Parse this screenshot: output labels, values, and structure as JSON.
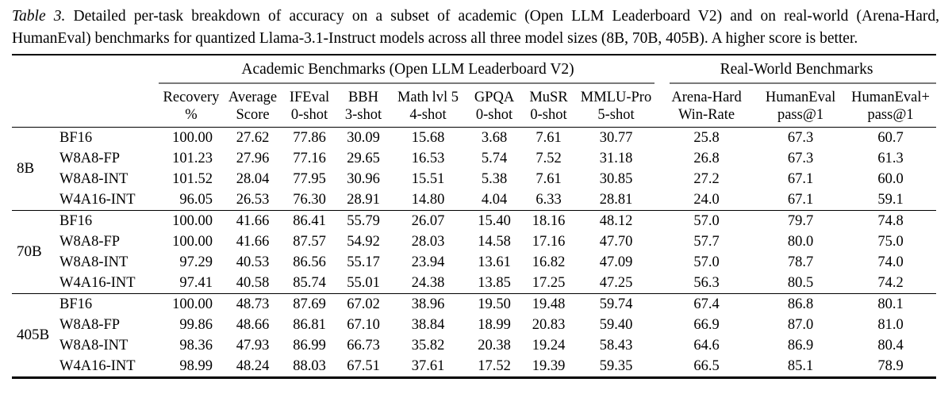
{
  "caption": {
    "label": "Table 3.",
    "text": "Detailed per-task breakdown of accuracy on a subset of academic (Open LLM Leaderboard V2) and on real-world (Arena-Hard, HumanEval) benchmarks for quantized Llama-3.1-Instruct models across all three model sizes (8B, 70B, 405B). A higher score is better."
  },
  "table": {
    "group_headers": [
      {
        "label": "Academic Benchmarks (Open LLM Leaderboard V2)"
      },
      {
        "label": "Real-World Benchmarks"
      }
    ],
    "columns": [
      {
        "line1": "Recovery",
        "line2": "%"
      },
      {
        "line1": "Average",
        "line2": "Score"
      },
      {
        "line1": "IFEval",
        "line2": "0-shot"
      },
      {
        "line1": "BBH",
        "line2": "3-shot"
      },
      {
        "line1": "Math lvl 5",
        "line2": "4-shot"
      },
      {
        "line1": "GPQA",
        "line2": "0-shot"
      },
      {
        "line1": "MuSR",
        "line2": "0-shot"
      },
      {
        "line1": "MMLU-Pro",
        "line2": "5-shot"
      },
      {
        "line1": "Arena-Hard",
        "line2": "Win-Rate"
      },
      {
        "line1": "HumanEval",
        "line2": "pass@1"
      },
      {
        "line1": "HumanEval+",
        "line2": "pass@1"
      }
    ],
    "groups": [
      {
        "size": "8B",
        "rows": [
          {
            "model": "BF16",
            "values": [
              "100.00",
              "27.62",
              "77.86",
              "30.09",
              "15.68",
              "3.68",
              "7.61",
              "30.77",
              "25.8",
              "67.3",
              "60.7"
            ]
          },
          {
            "model": "W8A8-FP",
            "values": [
              "101.23",
              "27.96",
              "77.16",
              "29.65",
              "16.53",
              "5.74",
              "7.52",
              "31.18",
              "26.8",
              "67.3",
              "61.3"
            ]
          },
          {
            "model": "W8A8-INT",
            "values": [
              "101.52",
              "28.04",
              "77.95",
              "30.96",
              "15.51",
              "5.38",
              "7.61",
              "30.85",
              "27.2",
              "67.1",
              "60.0"
            ]
          },
          {
            "model": "W4A16-INT",
            "values": [
              "96.05",
              "26.53",
              "76.30",
              "28.91",
              "14.80",
              "4.04",
              "6.33",
              "28.81",
              "24.0",
              "67.1",
              "59.1"
            ]
          }
        ]
      },
      {
        "size": "70B",
        "rows": [
          {
            "model": "BF16",
            "values": [
              "100.00",
              "41.66",
              "86.41",
              "55.79",
              "26.07",
              "15.40",
              "18.16",
              "48.12",
              "57.0",
              "79.7",
              "74.8"
            ]
          },
          {
            "model": "W8A8-FP",
            "values": [
              "100.00",
              "41.66",
              "87.57",
              "54.92",
              "28.03",
              "14.58",
              "17.16",
              "47.70",
              "57.7",
              "80.0",
              "75.0"
            ]
          },
          {
            "model": "W8A8-INT",
            "values": [
              "97.29",
              "40.53",
              "86.56",
              "55.17",
              "23.94",
              "13.61",
              "16.82",
              "47.09",
              "57.0",
              "78.7",
              "74.0"
            ]
          },
          {
            "model": "W4A16-INT",
            "values": [
              "97.41",
              "40.58",
              "85.74",
              "55.01",
              "24.38",
              "13.85",
              "17.25",
              "47.25",
              "56.3",
              "80.5",
              "74.2"
            ]
          }
        ]
      },
      {
        "size": "405B",
        "rows": [
          {
            "model": "BF16",
            "values": [
              "100.00",
              "48.73",
              "87.69",
              "67.02",
              "38.96",
              "19.50",
              "19.48",
              "59.74",
              "67.4",
              "86.8",
              "80.1"
            ]
          },
          {
            "model": "W8A8-FP",
            "values": [
              "99.86",
              "48.66",
              "86.81",
              "67.10",
              "38.84",
              "18.99",
              "20.83",
              "59.40",
              "66.9",
              "87.0",
              "81.0"
            ]
          },
          {
            "model": "W8A8-INT",
            "values": [
              "98.36",
              "47.93",
              "86.99",
              "66.73",
              "35.82",
              "20.38",
              "19.24",
              "58.43",
              "64.6",
              "86.9",
              "80.4"
            ]
          },
          {
            "model": "W4A16-INT",
            "values": [
              "98.99",
              "48.24",
              "88.03",
              "67.51",
              "37.61",
              "17.52",
              "19.39",
              "59.35",
              "66.5",
              "85.1",
              "78.9"
            ]
          }
        ]
      }
    ],
    "colors": {
      "rule_heavy": "#000000",
      "rule_light": "#7a7a7a"
    }
  }
}
